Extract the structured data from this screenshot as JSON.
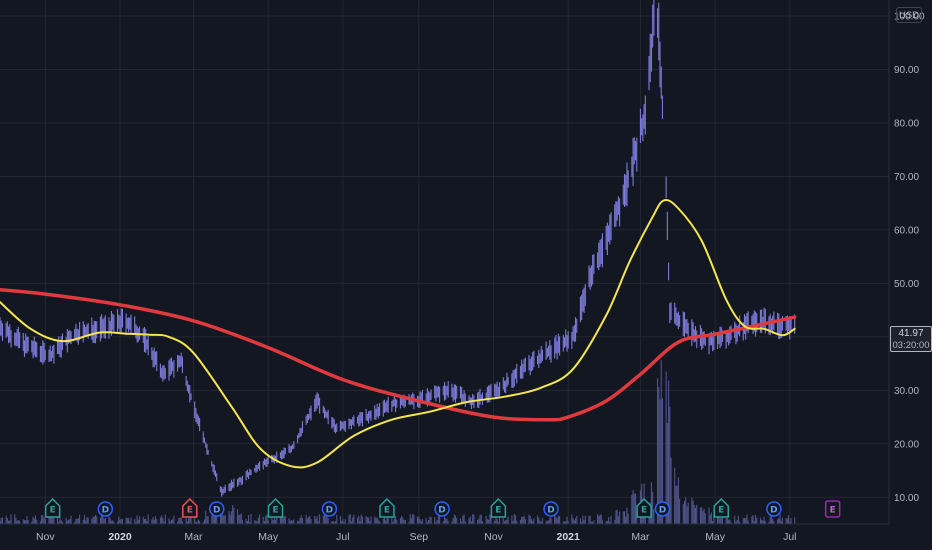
{
  "currency": "USD",
  "last_price": "41.97",
  "countdown": "03:20:00",
  "chart_data": {
    "type": "line",
    "y_ticks": [
      "100.00",
      "90.00",
      "80.00",
      "70.00",
      "60.00",
      "50.00",
      "40.00",
      "30.00",
      "20.00",
      "10.00"
    ],
    "y_tick_values": [
      100,
      90,
      80,
      70,
      60,
      50,
      40,
      30,
      20,
      10
    ],
    "ylim": [
      5,
      103
    ],
    "x_ticks": [
      {
        "label": "Nov",
        "bold": false
      },
      {
        "label": "2020",
        "bold": true
      },
      {
        "label": "Mar",
        "bold": false
      },
      {
        "label": "May",
        "bold": false
      },
      {
        "label": "Jul",
        "bold": false
      },
      {
        "label": "Sep",
        "bold": false
      },
      {
        "label": "Nov",
        "bold": false
      },
      {
        "label": "2021",
        "bold": true
      },
      {
        "label": "Mar",
        "bold": false
      },
      {
        "label": "May",
        "bold": false
      },
      {
        "label": "Jul",
        "bold": false
      }
    ],
    "x_tick_dates": [
      "2019-11-01",
      "2020-01-01",
      "2020-03-01",
      "2020-05-01",
      "2020-07-01",
      "2020-09-01",
      "2020-11-01",
      "2021-01-01",
      "2021-03-01",
      "2021-05-01",
      "2021-07-01"
    ],
    "x_range": [
      "2019-09-25",
      "2021-09-20"
    ],
    "grid": true,
    "colors": {
      "background": "#131722",
      "grid": "#242733",
      "price": "#7d7bd9",
      "volume": "#5b5f9e",
      "ma_fast": "#f5e64b",
      "ma_slow": "#e03a3e",
      "axis_text": "#b2b5be"
    },
    "price_anchors": [
      {
        "x": "2019-09-25",
        "y": 42
      },
      {
        "x": "2019-10-15",
        "y": 38.5
      },
      {
        "x": "2019-11-05",
        "y": 36.5
      },
      {
        "x": "2019-11-25",
        "y": 40.5
      },
      {
        "x": "2019-12-15",
        "y": 41.5
      },
      {
        "x": "2020-01-05",
        "y": 43
      },
      {
        "x": "2020-01-20",
        "y": 40
      },
      {
        "x": "2020-02-05",
        "y": 33
      },
      {
        "x": "2020-02-20",
        "y": 35.5
      },
      {
        "x": "2020-03-01",
        "y": 27
      },
      {
        "x": "2020-03-15",
        "y": 17
      },
      {
        "x": "2020-03-24",
        "y": 11
      },
      {
        "x": "2020-04-10",
        "y": 13.5
      },
      {
        "x": "2020-04-25",
        "y": 16
      },
      {
        "x": "2020-05-20",
        "y": 19
      },
      {
        "x": "2020-06-10",
        "y": 28
      },
      {
        "x": "2020-06-25",
        "y": 23
      },
      {
        "x": "2020-07-20",
        "y": 25
      },
      {
        "x": "2020-08-10",
        "y": 27.5
      },
      {
        "x": "2020-09-05",
        "y": 28.5
      },
      {
        "x": "2020-09-25",
        "y": 30
      },
      {
        "x": "2020-10-15",
        "y": 28
      },
      {
        "x": "2020-11-05",
        "y": 30
      },
      {
        "x": "2020-11-25",
        "y": 34
      },
      {
        "x": "2020-12-15",
        "y": 37
      },
      {
        "x": "2021-01-05",
        "y": 40
      },
      {
        "x": "2021-01-20",
        "y": 52
      },
      {
        "x": "2021-02-05",
        "y": 60
      },
      {
        "x": "2021-02-20",
        "y": 70
      },
      {
        "x": "2021-03-05",
        "y": 82
      },
      {
        "x": "2021-03-12",
        "y": 100
      },
      {
        "x": "2021-03-16",
        "y": 97
      },
      {
        "x": "2021-03-22",
        "y": 68
      },
      {
        "x": "2021-03-25",
        "y": 45
      },
      {
        "x": "2021-04-10",
        "y": 41
      },
      {
        "x": "2021-04-25",
        "y": 39
      },
      {
        "x": "2021-05-10",
        "y": 40
      },
      {
        "x": "2021-05-25",
        "y": 42
      },
      {
        "x": "2021-06-10",
        "y": 43
      },
      {
        "x": "2021-06-25",
        "y": 42
      },
      {
        "x": "2021-07-05",
        "y": 41.97
      }
    ],
    "series": [
      {
        "values": [
          {
            "x": "2019-09-25",
            "y": 46.5
          },
          {
            "x": "2019-10-20",
            "y": 41.5
          },
          {
            "x": "2019-11-15",
            "y": 39.2
          },
          {
            "x": "2019-12-15",
            "y": 40.8
          },
          {
            "x": "2020-01-05",
            "y": 40.6
          },
          {
            "x": "2020-01-25",
            "y": 40.4
          },
          {
            "x": "2020-02-10",
            "y": 40
          },
          {
            "x": "2020-03-01",
            "y": 37
          },
          {
            "x": "2020-04-01",
            "y": 27
          },
          {
            "x": "2020-04-25",
            "y": 19
          },
          {
            "x": "2020-05-20",
            "y": 15.8
          },
          {
            "x": "2020-06-10",
            "y": 16.5
          },
          {
            "x": "2020-07-10",
            "y": 21.5
          },
          {
            "x": "2020-08-10",
            "y": 24.5
          },
          {
            "x": "2020-09-10",
            "y": 26
          },
          {
            "x": "2020-10-10",
            "y": 27.8
          },
          {
            "x": "2020-11-10",
            "y": 28.8
          },
          {
            "x": "2020-12-10",
            "y": 30.5
          },
          {
            "x": "2021-01-05",
            "y": 34
          },
          {
            "x": "2021-02-01",
            "y": 44
          },
          {
            "x": "2021-02-20",
            "y": 54
          },
          {
            "x": "2021-03-10",
            "y": 62
          },
          {
            "x": "2021-03-20",
            "y": 65.5
          },
          {
            "x": "2021-04-01",
            "y": 64
          },
          {
            "x": "2021-04-20",
            "y": 58
          },
          {
            "x": "2021-05-10",
            "y": 47
          },
          {
            "x": "2021-05-25",
            "y": 42
          },
          {
            "x": "2021-06-10",
            "y": 41.5
          },
          {
            "x": "2021-06-25",
            "y": 40.3
          },
          {
            "x": "2021-07-05",
            "y": 41.5
          }
        ]
      },
      {
        "values": [
          {
            "x": "2019-09-25",
            "y": 48.8
          },
          {
            "x": "2019-11-01",
            "y": 48
          },
          {
            "x": "2020-01-01",
            "y": 46
          },
          {
            "x": "2020-03-01",
            "y": 43
          },
          {
            "x": "2020-05-01",
            "y": 38
          },
          {
            "x": "2020-07-01",
            "y": 32
          },
          {
            "x": "2020-09-01",
            "y": 28
          },
          {
            "x": "2020-11-01",
            "y": 25
          },
          {
            "x": "2020-12-15",
            "y": 24.5
          },
          {
            "x": "2021-01-01",
            "y": 25
          },
          {
            "x": "2021-02-01",
            "y": 28
          },
          {
            "x": "2021-03-01",
            "y": 33
          },
          {
            "x": "2021-04-01",
            "y": 39
          },
          {
            "x": "2021-05-01",
            "y": 40.5
          },
          {
            "x": "2021-06-01",
            "y": 42
          },
          {
            "x": "2021-07-05",
            "y": 43.7
          }
        ]
      }
    ],
    "events": [
      {
        "x": "2019-11-07",
        "label": "E",
        "kind": "earnings"
      },
      {
        "x": "2019-12-20",
        "label": "D",
        "kind": "dividend"
      },
      {
        "x": "2020-02-27",
        "label": "E",
        "kind": "earnings-miss"
      },
      {
        "x": "2020-03-20",
        "label": "D",
        "kind": "dividend"
      },
      {
        "x": "2020-05-07",
        "label": "E",
        "kind": "earnings"
      },
      {
        "x": "2020-06-20",
        "label": "D",
        "kind": "dividend"
      },
      {
        "x": "2020-08-06",
        "label": "E",
        "kind": "earnings"
      },
      {
        "x": "2020-09-20",
        "label": "D",
        "kind": "dividend"
      },
      {
        "x": "2020-11-05",
        "label": "E",
        "kind": "earnings"
      },
      {
        "x": "2020-12-18",
        "label": "D",
        "kind": "dividend"
      },
      {
        "x": "2021-03-04",
        "label": "E",
        "kind": "earnings"
      },
      {
        "x": "2021-03-19",
        "label": "D",
        "kind": "dividend"
      },
      {
        "x": "2021-05-06",
        "label": "E",
        "kind": "earnings"
      },
      {
        "x": "2021-06-18",
        "label": "D",
        "kind": "dividend"
      },
      {
        "x": "2021-08-05",
        "label": "E",
        "kind": "upcoming-earnings"
      }
    ]
  }
}
